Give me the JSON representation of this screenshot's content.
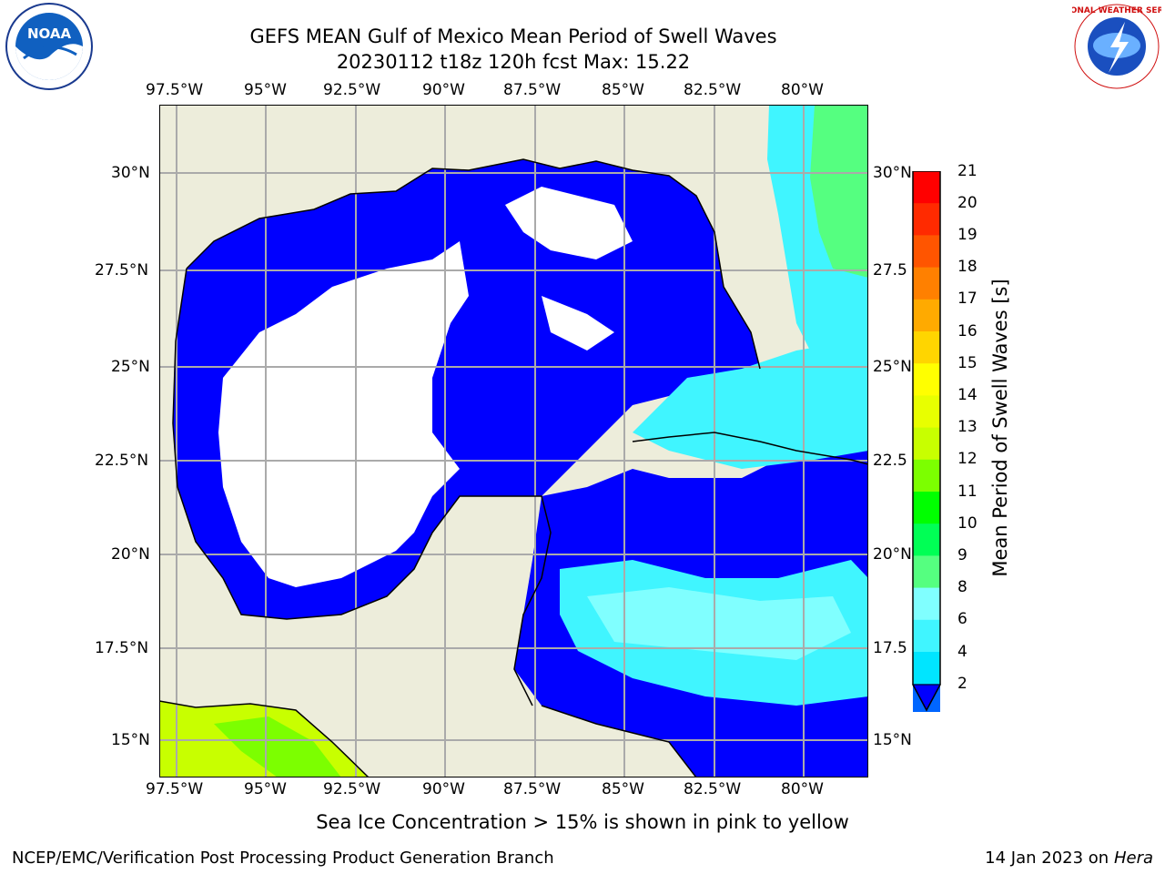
{
  "header": {
    "title_line1": "GEFS MEAN Gulf of Mexico Mean Period of Swell Waves",
    "title_line2": "20230112 t18z 120h fcst   Max: 15.22"
  },
  "logos": {
    "noara_text": "NOAA",
    "nws_text": "NATIONAL WEATHER SERVICE"
  },
  "map": {
    "lon_labels": [
      "97.5°W",
      "95°W",
      "92.5°W",
      "90°W",
      "87.5°W",
      "85°W",
      "82.5°W",
      "80°W"
    ],
    "lat_labels": [
      "30°N",
      "27.5°N",
      "25°N",
      "22.5°N",
      "20°N",
      "17.5°N",
      "15°N"
    ],
    "lat_labels_right": [
      "30°N",
      "27.5",
      "25°N",
      "22.5",
      "20°N",
      "17.5",
      "15°N"
    ],
    "colors": {
      "land": "#ededdb",
      "ocean_low": "#0000ff",
      "ocean_mid": "#00e5ff",
      "ocean_hi": "#33ff66",
      "gridline": "#aaaaaa"
    }
  },
  "colorbar": {
    "label": "Mean Period of Swell Waves [s]",
    "ticks": [
      "21",
      "20",
      "19",
      "18",
      "17",
      "16",
      "15",
      "14",
      "13",
      "12",
      "11",
      "10",
      "9",
      "8",
      "6",
      "4",
      "2"
    ],
    "colors": [
      "#ff0000",
      "#ff2a00",
      "#ff5500",
      "#ff8000",
      "#ffaa00",
      "#ffd500",
      "#ffff00",
      "#e8ff00",
      "#c8ff00",
      "#7cff00",
      "#00ff00",
      "#00ff55",
      "#55ff80",
      "#80ffff",
      "#40f5ff",
      "#00e5ff",
      "#0066ff"
    ],
    "extend_color": "#0000ff"
  },
  "notes": {
    "sea_ice": "Sea Ice Concentration > 15% is shown in pink to yellow"
  },
  "footer": {
    "left": "NCEP/EMC/Verification Post Processing Product Generation Branch",
    "right_date": "14 Jan 2023 on ",
    "right_machine": "Hera"
  }
}
